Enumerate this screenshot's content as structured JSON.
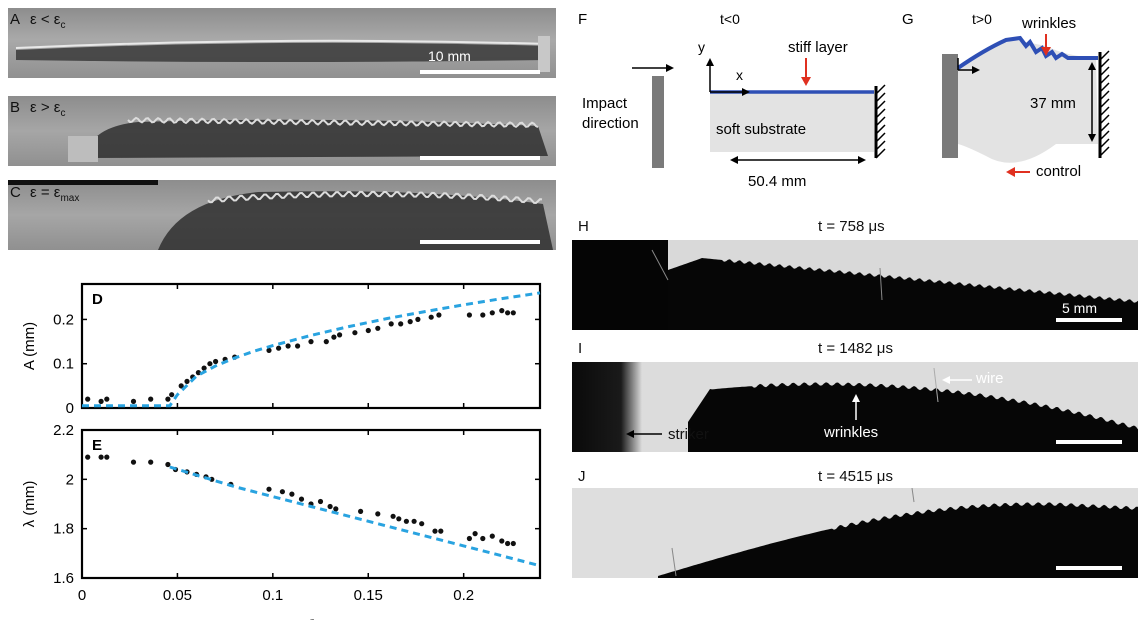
{
  "panels": {
    "A": {
      "letter": "A",
      "caption": "ε < ε",
      "sub": "c",
      "scale_text": "10 mm"
    },
    "B": {
      "letter": "B",
      "caption": "ε > ε",
      "sub": "c"
    },
    "C": {
      "letter": "C",
      "caption": "ε = ε",
      "sub": "max"
    },
    "F": {
      "letter": "F",
      "time": "t<0",
      "impact_line1": "Impact",
      "impact_line2": "direction",
      "axis_y": "y",
      "axis_x": "x",
      "stiff": "stiff layer",
      "soft": "soft substrate",
      "length": "50.4 mm"
    },
    "G": {
      "letter": "G",
      "time": "t>0",
      "wrinkles": "wrinkles",
      "height": "37 mm",
      "control": "control"
    },
    "H": {
      "letter": "H",
      "time": "t = 758 μs",
      "scale_text": "5 mm"
    },
    "I": {
      "letter": "I",
      "time": "t = 1482 μs",
      "striker": "striker",
      "wire": "wire",
      "wrinkles": "wrinkles"
    },
    "J": {
      "letter": "J",
      "time": "t = 4515 μs"
    }
  },
  "colors": {
    "fit": "#29a3e0",
    "points": "#111111",
    "stiff": "#2e4fb5",
    "arrow_red": "#e03020"
  },
  "chart_data": [
    {
      "type": "scatter",
      "panel": "D",
      "title": "",
      "xlabel": "",
      "ylabel": "A (mm)",
      "xlim": [
        0,
        0.24
      ],
      "ylim": [
        0,
        0.28
      ],
      "xticks": [
        0,
        0.05,
        0.1,
        0.15,
        0.2
      ],
      "yticks": [
        0,
        0.1,
        0.2
      ],
      "ytick_labels": [
        "0",
        "0.1",
        "0.2"
      ],
      "series": [
        {
          "kind": "points",
          "x": [
            0.003,
            0.01,
            0.013,
            0.027,
            0.036,
            0.045,
            0.047,
            0.052,
            0.055,
            0.058,
            0.061,
            0.064,
            0.067,
            0.07,
            0.075,
            0.08,
            0.098,
            0.103,
            0.108,
            0.113,
            0.12,
            0.128,
            0.132,
            0.135,
            0.143,
            0.15,
            0.155,
            0.162,
            0.167,
            0.172,
            0.176,
            0.183,
            0.187,
            0.203,
            0.21,
            0.215,
            0.22,
            0.223,
            0.226
          ],
          "y": [
            0.02,
            0.015,
            0.02,
            0.015,
            0.02,
            0.02,
            0.03,
            0.05,
            0.06,
            0.07,
            0.08,
            0.09,
            0.1,
            0.105,
            0.11,
            0.115,
            0.13,
            0.135,
            0.14,
            0.14,
            0.15,
            0.15,
            0.16,
            0.165,
            0.17,
            0.175,
            0.18,
            0.19,
            0.19,
            0.195,
            0.2,
            0.205,
            0.21,
            0.21,
            0.21,
            0.215,
            0.22,
            0.215,
            0.215
          ]
        },
        {
          "kind": "fit",
          "x": [
            0,
            0.046,
            0.05,
            0.06,
            0.07,
            0.08,
            0.09,
            0.1,
            0.12,
            0.14,
            0.16,
            0.18,
            0.2,
            0.22,
            0.24
          ],
          "y": [
            0.005,
            0.005,
            0.03,
            0.072,
            0.095,
            0.113,
            0.128,
            0.141,
            0.164,
            0.184,
            0.202,
            0.218,
            0.233,
            0.247,
            0.26
          ]
        }
      ]
    },
    {
      "type": "scatter",
      "panel": "E",
      "title": "",
      "xlabel": "ϵ",
      "ylabel": "λ (mm)",
      "xlim": [
        0,
        0.24
      ],
      "ylim": [
        1.6,
        2.2
      ],
      "xticks": [
        0,
        0.05,
        0.1,
        0.15,
        0.2
      ],
      "xtick_labels": [
        "0",
        "0.05",
        "0.1",
        "0.15",
        "0.2"
      ],
      "yticks": [
        1.6,
        1.8,
        2.0,
        2.2
      ],
      "ytick_labels": [
        "1.6",
        "1.8",
        "2",
        "2.2"
      ],
      "series": [
        {
          "kind": "points",
          "x": [
            0.003,
            0.01,
            0.013,
            0.027,
            0.036,
            0.045,
            0.049,
            0.055,
            0.06,
            0.065,
            0.068,
            0.078,
            0.098,
            0.105,
            0.11,
            0.115,
            0.12,
            0.125,
            0.13,
            0.133,
            0.146,
            0.155,
            0.163,
            0.166,
            0.17,
            0.174,
            0.178,
            0.185,
            0.188,
            0.203,
            0.206,
            0.21,
            0.215,
            0.22,
            0.223,
            0.226
          ],
          "y": [
            2.09,
            2.09,
            2.09,
            2.07,
            2.07,
            2.06,
            2.04,
            2.03,
            2.02,
            2.01,
            2.0,
            1.98,
            1.96,
            1.95,
            1.94,
            1.92,
            1.9,
            1.91,
            1.89,
            1.88,
            1.87,
            1.86,
            1.85,
            1.84,
            1.83,
            1.83,
            1.82,
            1.79,
            1.79,
            1.76,
            1.78,
            1.76,
            1.77,
            1.75,
            1.74,
            1.74
          ]
        },
        {
          "kind": "fit",
          "x": [
            0.046,
            0.08,
            0.12,
            0.16,
            0.2,
            0.24
          ],
          "y": [
            2.05,
            1.97,
            1.89,
            1.81,
            1.73,
            1.65
          ]
        }
      ]
    }
  ]
}
